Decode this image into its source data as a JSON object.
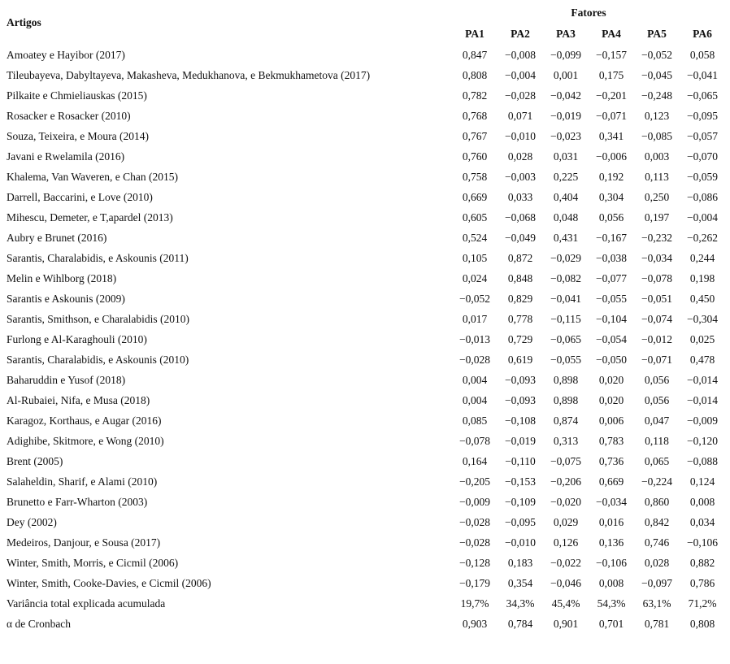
{
  "header": {
    "artigos": "Artigos",
    "fatores": "Fatores",
    "factors": [
      "PA1",
      "PA2",
      "PA3",
      "PA4",
      "PA5",
      "PA6"
    ]
  },
  "rows": [
    {
      "label": "Amoatey e Hayibor (2017)",
      "values": [
        "0,847",
        "−0,008",
        "−0,099",
        "−0,157",
        "−0,052",
        "0,058"
      ]
    },
    {
      "label": "Tileubayeva, Dabyltayeva, Makasheva, Medukhanova, e Bekmukhametova (2017)",
      "values": [
        "0,808",
        "−0,004",
        "0,001",
        "0,175",
        "−0,045",
        "−0,041"
      ]
    },
    {
      "label": "Pilkaite e Chmieliauskas (2015)",
      "values": [
        "0,782",
        "−0,028",
        "−0,042",
        "−0,201",
        "−0,248",
        "−0,065"
      ]
    },
    {
      "label": "Rosacker e Rosacker (2010)",
      "values": [
        "0,768",
        "0,071",
        "−0,019",
        "−0,071",
        "0,123",
        "−0,095"
      ]
    },
    {
      "label": "Souza, Teixeira, e Moura (2014)",
      "values": [
        "0,767",
        "−0,010",
        "−0,023",
        "0,341",
        "−0,085",
        "−0,057"
      ]
    },
    {
      "label": "Javani e Rwelamila (2016)",
      "values": [
        "0,760",
        "0,028",
        "0,031",
        "−0,006",
        "0,003",
        "−0,070"
      ]
    },
    {
      "label": "Khalema, Van Waveren, e Chan (2015)",
      "values": [
        "0,758",
        "−0,003",
        "0,225",
        "0,192",
        "0,113",
        "−0,059"
      ]
    },
    {
      "label": "Darrell, Baccarini, e Love (2010)",
      "values": [
        "0,669",
        "0,033",
        "0,404",
        "0,304",
        "0,250",
        "−0,086"
      ]
    },
    {
      "label": "Mihescu, Demeter, e T,apardel (2013)",
      "values": [
        "0,605",
        "−0,068",
        "0,048",
        "0,056",
        "0,197",
        "−0,004"
      ]
    },
    {
      "label": "Aubry e Brunet (2016)",
      "values": [
        "0,524",
        "−0,049",
        "0,431",
        "−0,167",
        "−0,232",
        "−0,262"
      ]
    },
    {
      "label": "Sarantis, Charalabidis, e Askounis (2011)",
      "values": [
        "0,105",
        "0,872",
        "−0,029",
        "−0,038",
        "−0,034",
        "0,244"
      ]
    },
    {
      "label": "Melin e Wihlborg (2018)",
      "values": [
        "0,024",
        "0,848",
        "−0,082",
        "−0,077",
        "−0,078",
        "0,198"
      ]
    },
    {
      "label": "Sarantis e Askounis (2009)",
      "values": [
        "−0,052",
        "0,829",
        "−0,041",
        "−0,055",
        "−0,051",
        "0,450"
      ]
    },
    {
      "label": "Sarantis, Smithson, e Charalabidis (2010)",
      "values": [
        "0,017",
        "0,778",
        "−0,115",
        "−0,104",
        "−0,074",
        "−0,304"
      ]
    },
    {
      "label": "Furlong e Al-Karaghouli (2010)",
      "values": [
        "−0,013",
        "0,729",
        "−0,065",
        "−0,054",
        "−0,012",
        "0,025"
      ]
    },
    {
      "label": "Sarantis, Charalabidis, e Askounis (2010)",
      "values": [
        "−0,028",
        "0,619",
        "−0,055",
        "−0,050",
        "−0,071",
        "0,478"
      ]
    },
    {
      "label": "Baharuddin e Yusof (2018)",
      "values": [
        "0,004",
        "−0,093",
        "0,898",
        "0,020",
        "0,056",
        "−0,014"
      ]
    },
    {
      "label": "Al-Rubaiei, Nifa, e Musa (2018)",
      "values": [
        "0,004",
        "−0,093",
        "0,898",
        "0,020",
        "0,056",
        "−0,014"
      ]
    },
    {
      "label": "Karagoz, Korthaus, e Augar (2016)",
      "values": [
        "0,085",
        "−0,108",
        "0,874",
        "0,006",
        "0,047",
        "−0,009"
      ]
    },
    {
      "label": "Adighibe, Skitmore, e Wong (2010)",
      "values": [
        "−0,078",
        "−0,019",
        "0,313",
        "0,783",
        "0,118",
        "−0,120"
      ]
    },
    {
      "label": "Brent (2005)",
      "values": [
        "0,164",
        "−0,110",
        "−0,075",
        "0,736",
        "0,065",
        "−0,088"
      ]
    },
    {
      "label": "Salaheldin, Sharif, e Alami (2010)",
      "values": [
        "−0,205",
        "−0,153",
        "−0,206",
        "0,669",
        "−0,224",
        "0,124"
      ]
    },
    {
      "label": "Brunetto e Farr-Wharton (2003)",
      "values": [
        "−0,009",
        "−0,109",
        "−0,020",
        "−0,034",
        "0,860",
        "0,008"
      ]
    },
    {
      "label": "Dey (2002)",
      "values": [
        "−0,028",
        "−0,095",
        "0,029",
        "0,016",
        "0,842",
        "0,034"
      ]
    },
    {
      "label": "Medeiros, Danjour, e Sousa (2017)",
      "values": [
        "−0,028",
        "−0,010",
        "0,126",
        "0,136",
        "0,746",
        "−0,106"
      ]
    },
    {
      "label": "Winter, Smith, Morris, e Cicmil (2006)",
      "values": [
        "−0,128",
        "0,183",
        "−0,022",
        "−0,106",
        "0,028",
        "0,882"
      ]
    },
    {
      "label": "Winter, Smith, Cooke-Davies, e Cicmil (2006)",
      "values": [
        "−0,179",
        "0,354",
        "−0,046",
        "0,008",
        "−0,097",
        "0,786"
      ]
    },
    {
      "label": "Variância total explicada acumulada",
      "values": [
        "19,7%",
        "34,3%",
        "45,4%",
        "54,3%",
        "63,1%",
        "71,2%"
      ]
    },
    {
      "label": "α de Cronbach",
      "values": [
        "0,903",
        "0,784",
        "0,901",
        "0,701",
        "0,781",
        "0,808"
      ]
    }
  ]
}
